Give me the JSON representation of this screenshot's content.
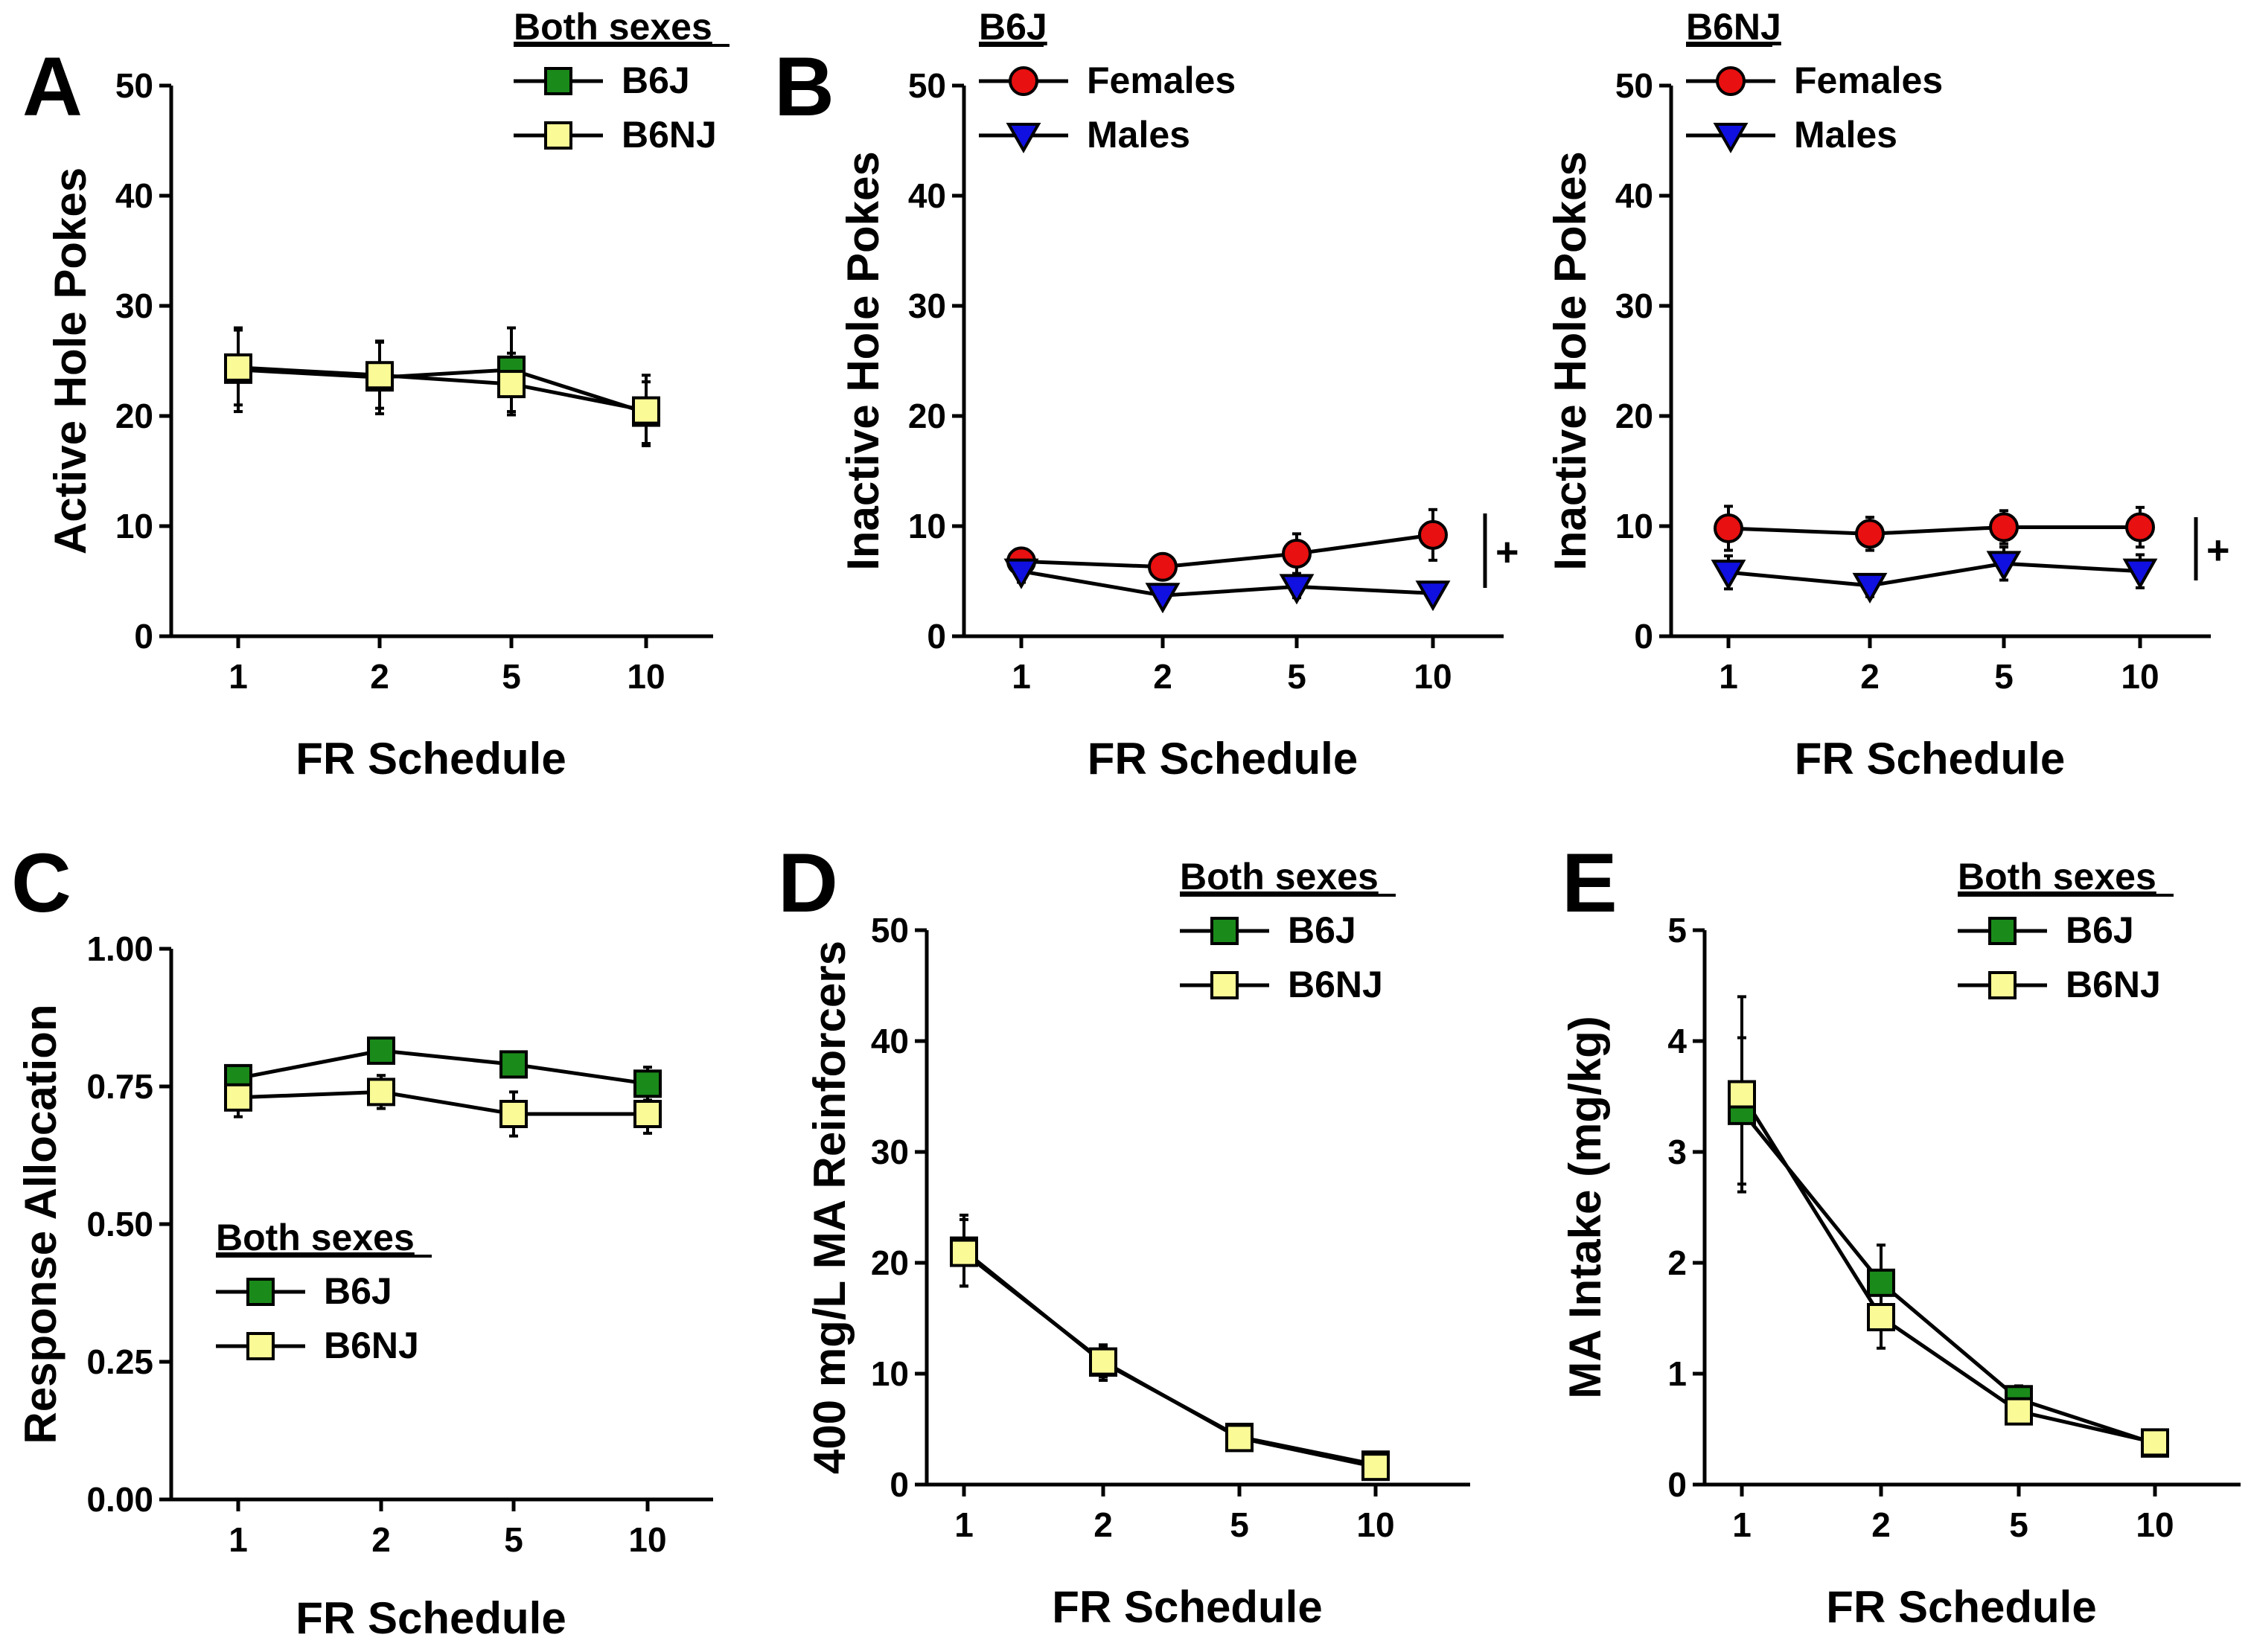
{
  "colors": {
    "b6j_fill": "#1a8a1a",
    "b6nj_fill": "#fafa96",
    "females_fill": "#e81010",
    "males_fill": "#1010e0",
    "stroke": "#000000"
  },
  "chart_data": [
    {
      "id": "A",
      "panel_label": "A",
      "type": "line",
      "title": "",
      "xlabel": "FR Schedule",
      "ylabel": "Active Hole Pokes",
      "categories": [
        "1",
        "2",
        "5",
        "10"
      ],
      "ylim": [
        0,
        50
      ],
      "yticks": [
        "0",
        "10",
        "20",
        "30",
        "40",
        "50"
      ],
      "legend_title": "Both sexes",
      "legend_position": "top-right",
      "series": [
        {
          "name": "B6J",
          "marker": "square",
          "color": "#1a8a1a",
          "values": [
            24.2,
            23.5,
            24.2,
            20.3
          ],
          "errors": [
            3.8,
            3.3,
            3.8,
            2.8
          ]
        },
        {
          "name": "B6NJ",
          "marker": "square",
          "color": "#fafa96",
          "values": [
            24.4,
            23.7,
            22.9,
            20.5
          ],
          "errors": [
            3.4,
            3.0,
            2.8,
            3.2
          ]
        }
      ]
    },
    {
      "id": "B1",
      "panel_label": "B",
      "type": "line",
      "title": "",
      "xlabel": "FR Schedule",
      "ylabel": "Inactive Hole Pokes",
      "categories": [
        "1",
        "2",
        "5",
        "10"
      ],
      "ylim": [
        0,
        50
      ],
      "yticks": [
        "0",
        "10",
        "20",
        "30",
        "40",
        "50"
      ],
      "legend_title": "B6J",
      "legend_position": "top-left",
      "annotation": "+",
      "series": [
        {
          "name": "Females",
          "marker": "circle",
          "color": "#e81010",
          "values": [
            6.8,
            6.3,
            7.5,
            9.2
          ],
          "errors": [
            1.0,
            1.0,
            1.8,
            2.3
          ]
        },
        {
          "name": "Males",
          "marker": "triangle",
          "color": "#1010e0",
          "values": [
            5.9,
            3.7,
            4.5,
            3.9
          ],
          "errors": [
            1.0,
            0.8,
            1.0,
            0.8
          ]
        }
      ]
    },
    {
      "id": "B2",
      "panel_label": "",
      "type": "line",
      "title": "",
      "xlabel": "FR Schedule",
      "ylabel": "Inactive Hole Pokes",
      "categories": [
        "1",
        "2",
        "5",
        "10"
      ],
      "ylim": [
        0,
        50
      ],
      "yticks": [
        "0",
        "10",
        "20",
        "30",
        "40",
        "50"
      ],
      "legend_title": "B6NJ",
      "legend_position": "top-left",
      "annotation": "+",
      "series": [
        {
          "name": "Females",
          "marker": "circle",
          "color": "#e81010",
          "values": [
            9.8,
            9.3,
            9.9,
            9.9
          ],
          "errors": [
            2.0,
            1.5,
            1.5,
            1.8
          ]
        },
        {
          "name": "Males",
          "marker": "triangle",
          "color": "#1010e0",
          "values": [
            5.8,
            4.6,
            6.6,
            5.9
          ],
          "errors": [
            1.5,
            1.0,
            1.5,
            1.5
          ]
        }
      ]
    },
    {
      "id": "C",
      "panel_label": "C",
      "type": "line",
      "title": "",
      "xlabel": "FR Schedule",
      "ylabel": "Response Allocation",
      "categories": [
        "1",
        "2",
        "5",
        "10"
      ],
      "ylim": [
        0,
        1
      ],
      "yticks": [
        "0.00",
        "0.25",
        "0.50",
        "0.75",
        "1.00"
      ],
      "legend_title": "Both sexes",
      "legend_position": "bottom-left",
      "series": [
        {
          "name": "B6J",
          "marker": "square",
          "color": "#1a8a1a",
          "values": [
            0.765,
            0.815,
            0.79,
            0.755
          ],
          "errors": [
            0.02,
            0.02,
            0.02,
            0.03
          ]
        },
        {
          "name": "B6NJ",
          "marker": "square",
          "color": "#fafa96",
          "values": [
            0.73,
            0.74,
            0.7,
            0.7
          ],
          "errors": [
            0.035,
            0.03,
            0.04,
            0.035
          ]
        }
      ]
    },
    {
      "id": "D",
      "panel_label": "D",
      "type": "line",
      "title": "",
      "xlabel": "FR Schedule",
      "ylabel": "400 mg/L MA Reinforcers",
      "categories": [
        "1",
        "2",
        "5",
        "10"
      ],
      "ylim": [
        0,
        50
      ],
      "yticks": [
        "0",
        "10",
        "20",
        "30",
        "40",
        "50"
      ],
      "legend_title": "Both sexes",
      "legend_position": "top-right",
      "series": [
        {
          "name": "B6J",
          "marker": "square",
          "color": "#1a8a1a",
          "values": [
            21.1,
            11.0,
            4.3,
            1.8
          ],
          "errors": [
            3.2,
            1.6,
            0.9,
            0.8
          ]
        },
        {
          "name": "B6NJ",
          "marker": "square",
          "color": "#fafa96",
          "values": [
            20.9,
            11.1,
            4.2,
            1.6
          ],
          "errors": [
            3.0,
            1.4,
            0.7,
            0.7
          ]
        }
      ]
    },
    {
      "id": "E",
      "panel_label": "E",
      "type": "line",
      "title": "",
      "xlabel": "FR Schedule",
      "ylabel": "MA Intake (mg/kg)",
      "categories": [
        "1",
        "2",
        "5",
        "10"
      ],
      "ylim": [
        0,
        5
      ],
      "yticks": [
        "0",
        "1",
        "2",
        "3",
        "4",
        "5"
      ],
      "legend_title": "Both sexes",
      "legend_position": "top-right",
      "series": [
        {
          "name": "B6J",
          "marker": "square",
          "color": "#1a8a1a",
          "values": [
            3.37,
            1.82,
            0.77,
            0.37
          ],
          "errors": [
            0.66,
            0.34,
            0.12,
            0.07
          ]
        },
        {
          "name": "B6NJ",
          "marker": "square",
          "color": "#fafa96",
          "values": [
            3.52,
            1.51,
            0.66,
            0.38
          ],
          "errors": [
            0.88,
            0.28,
            0.11,
            0.07
          ]
        }
      ]
    }
  ]
}
